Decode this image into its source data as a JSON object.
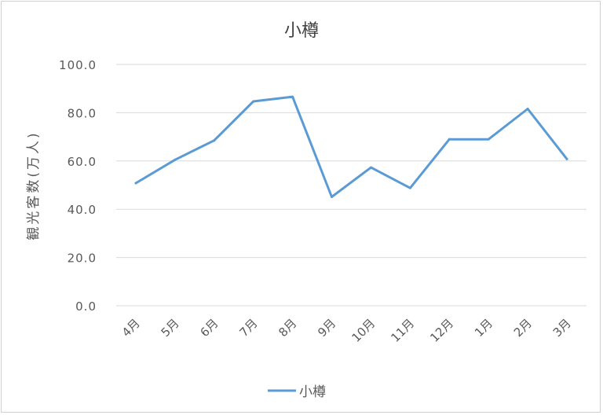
{
  "chart_data": {
    "type": "line",
    "title": "小樽",
    "xlabel": "",
    "ylabel": "観光客数(万人)",
    "categories": [
      "4月",
      "5月",
      "6月",
      "7月",
      "8月",
      "9月",
      "10月",
      "11月",
      "12月",
      "1月",
      "2月",
      "3月"
    ],
    "series": [
      {
        "name": "小樽",
        "color": "#5b9bd5",
        "values": [
          50.8,
          60.5,
          68.5,
          84.7,
          86.6,
          45.1,
          57.3,
          48.8,
          69.0,
          69.0,
          81.6,
          60.8
        ]
      }
    ],
    "ylim": [
      0,
      100
    ],
    "yticks": [
      "0.0",
      "20.0",
      "40.0",
      "60.0",
      "80.0",
      "100.0"
    ],
    "grid": true,
    "legend": "bottom"
  }
}
